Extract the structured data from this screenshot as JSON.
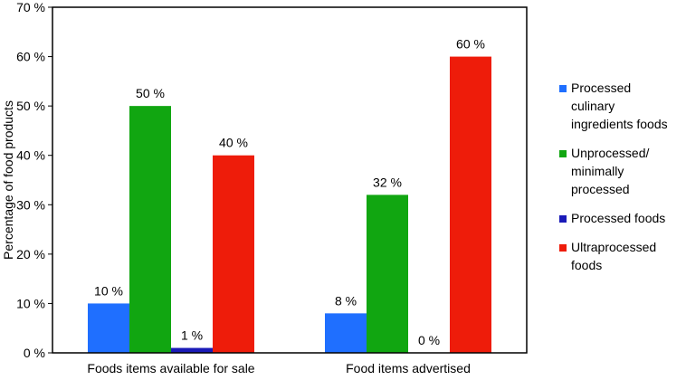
{
  "chart_data": {
    "type": "bar",
    "title": "",
    "xlabel": "",
    "ylabel": "Percentage of food products",
    "ylim": [
      0,
      70
    ],
    "ytick_step": 10,
    "ytick_suffix": " %",
    "grid": false,
    "legend_position": "right",
    "categories": [
      "Foods items available for sale",
      "Food items advertised"
    ],
    "series": [
      {
        "name": "Processed culinary ingredients foods",
        "legend_lines": [
          "Processed",
          "culinary",
          "ingredients foods"
        ],
        "color": "#1f6fff",
        "values": [
          10,
          8
        ],
        "labels": [
          "10 %",
          "8 %"
        ]
      },
      {
        "name": "Unprocessed/ minimally processed",
        "legend_lines": [
          "Unprocessed/",
          "minimally",
          "processed"
        ],
        "color": "#11a611",
        "values": [
          50,
          32
        ],
        "labels": [
          "50 %",
          "32 %"
        ]
      },
      {
        "name": "Processed foods",
        "legend_lines": [
          "Processed foods"
        ],
        "color": "#1a1ab8",
        "values": [
          1,
          0
        ],
        "labels": [
          "1 %",
          "0 %"
        ]
      },
      {
        "name": "Ultraprocessed foods",
        "legend_lines": [
          "Ultraprocessed",
          "foods"
        ],
        "color": "#ee1c0a",
        "values": [
          40,
          60
        ],
        "labels": [
          "40 %",
          "60 %"
        ]
      }
    ]
  }
}
